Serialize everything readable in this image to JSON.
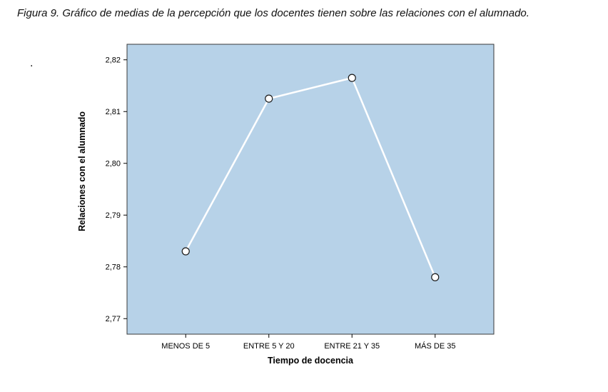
{
  "caption": "Figura 9. Gráfico de medias de la percepción que los docentes tienen sobre las relaciones con el alumnado.",
  "stray_dot": ".",
  "chart_data": {
    "type": "line",
    "title": "",
    "categories": [
      "MENOS DE 5",
      "ENTRE 5 Y 20",
      "ENTRE 21 Y 35",
      "MÁS DE 35"
    ],
    "values": [
      2.783,
      2.8125,
      2.8165,
      2.778
    ],
    "xlabel": "Tiempo de docencia",
    "ylabel": "Relaciones con el alumnado",
    "ylim": [
      2.767,
      2.823
    ],
    "yticks": [
      2.82,
      2.81,
      2.8,
      2.79,
      2.78,
      2.77
    ],
    "ytick_labels": [
      "2,82",
      "2,81",
      "2,80",
      "2,79",
      "2,78",
      "2,77"
    ],
    "grid": false,
    "legend": "none",
    "plot_bg_color": "#b7d2e8",
    "plot_border_color": "#3a3a3a",
    "line_color": "#ffffff",
    "marker": "open-circle",
    "marker_fill": "#ffffff",
    "marker_stroke": "#1a1a1a"
  }
}
